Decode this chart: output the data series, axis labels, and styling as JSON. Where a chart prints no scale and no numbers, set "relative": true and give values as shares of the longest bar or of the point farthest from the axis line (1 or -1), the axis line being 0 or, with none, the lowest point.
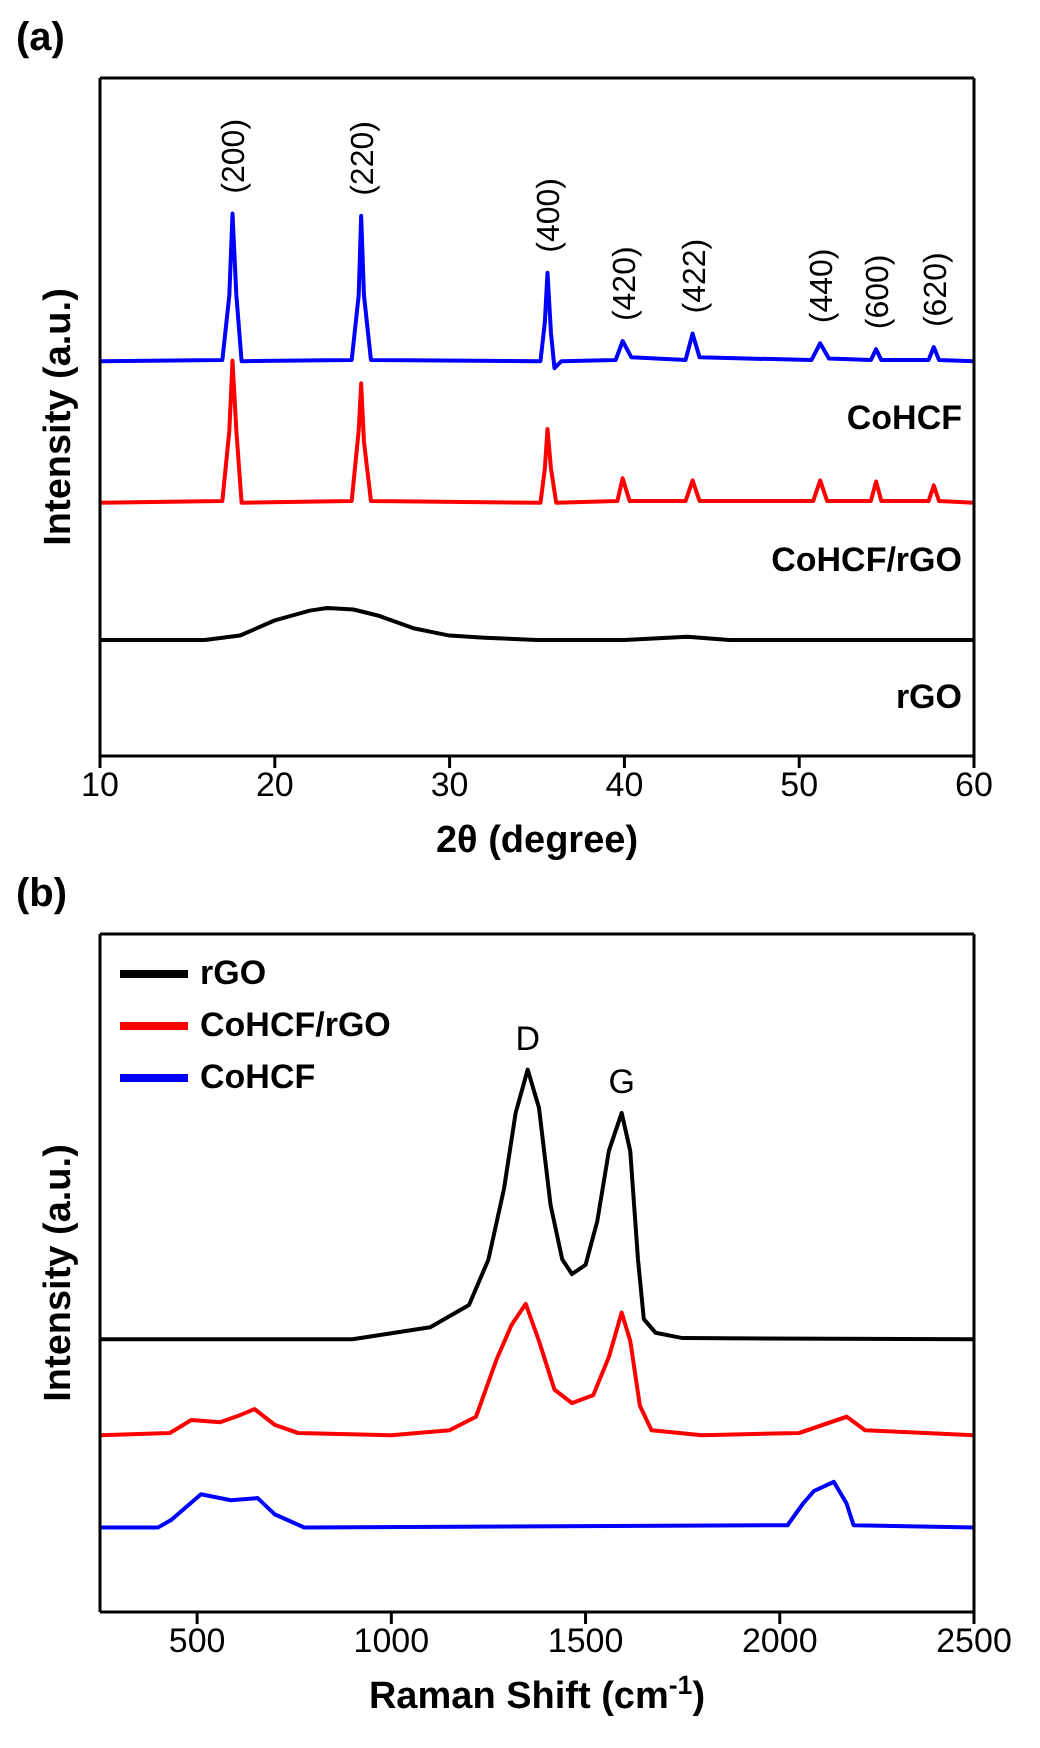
{
  "chart_data": [
    {
      "type": "line",
      "title": "(a)",
      "xlabel": "2θ (degree)",
      "ylabel": "Intensity (a.u.)",
      "relative": true,
      "xlim": [
        10,
        60
      ],
      "xticks": [
        10,
        20,
        30,
        40,
        50,
        60
      ],
      "legend": false,
      "marker": "none",
      "line_style": "solid",
      "annotations": [
        {
          "text": "(200)",
          "x": 17.58,
          "y": 1.0
        },
        {
          "text": "(220)",
          "x": 24.94,
          "y": 0.996
        },
        {
          "text": "(400)",
          "x": 35.6,
          "y": 0.891
        },
        {
          "text": "(420)",
          "x": 39.9,
          "y": 0.765
        },
        {
          "text": "(422)",
          "x": 43.9,
          "y": 0.779
        },
        {
          "text": "(440)",
          "x": 51.2,
          "y": 0.761
        },
        {
          "text": "(600)",
          "x": 54.4,
          "y": 0.75
        },
        {
          "text": "(620)",
          "x": 57.7,
          "y": 0.754
        }
      ],
      "series": [
        {
          "name": "CoHCF",
          "color": "#0000ff",
          "x": [
            10,
            17.0,
            17.4,
            17.58,
            17.8,
            18.1,
            24.4,
            24.8,
            24.94,
            25.1,
            25.5,
            35.2,
            35.45,
            35.6,
            35.8,
            36.0,
            36.4,
            39.5,
            39.9,
            40.4,
            43.5,
            43.9,
            44.3,
            50.7,
            51.2,
            51.7,
            54.1,
            54.4,
            54.7,
            57.4,
            57.7,
            58.0,
            60
          ],
          "values": [
            0.728,
            0.73,
            0.85,
            1.0,
            0.85,
            0.728,
            0.73,
            0.85,
            0.996,
            0.85,
            0.73,
            0.728,
            0.8,
            0.891,
            0.78,
            0.715,
            0.728,
            0.73,
            0.765,
            0.735,
            0.73,
            0.779,
            0.735,
            0.73,
            0.761,
            0.733,
            0.73,
            0.75,
            0.73,
            0.73,
            0.754,
            0.73,
            0.728
          ]
        },
        {
          "name": "CoHCF/rGO",
          "color": "#ff0000",
          "x": [
            10,
            17.0,
            17.4,
            17.58,
            17.8,
            18.1,
            24.4,
            24.8,
            24.94,
            25.1,
            25.5,
            35.2,
            35.45,
            35.6,
            35.8,
            36.1,
            39.6,
            39.9,
            40.3,
            43.5,
            43.9,
            44.3,
            50.8,
            51.2,
            51.6,
            54.1,
            54.4,
            54.7,
            57.4,
            57.7,
            58,
            60
          ],
          "values": [
            0.467,
            0.47,
            0.6,
            0.729,
            0.6,
            0.467,
            0.47,
            0.6,
            0.687,
            0.58,
            0.47,
            0.467,
            0.53,
            0.603,
            0.53,
            0.467,
            0.47,
            0.512,
            0.47,
            0.47,
            0.508,
            0.47,
            0.47,
            0.508,
            0.47,
            0.47,
            0.506,
            0.47,
            0.47,
            0.499,
            0.47,
            0.467
          ]
        },
        {
          "name": "rGO",
          "color": "#000000",
          "x": [
            10,
            16,
            18,
            20,
            22,
            23,
            24.5,
            26,
            28,
            30,
            32,
            35,
            40,
            43.6,
            46,
            60
          ],
          "values": [
            0.214,
            0.214,
            0.222,
            0.25,
            0.268,
            0.273,
            0.27,
            0.258,
            0.235,
            0.222,
            0.218,
            0.214,
            0.214,
            0.22,
            0.214,
            0.214
          ]
        }
      ]
    },
    {
      "type": "line",
      "title": "(b)",
      "xlabel": "Raman Shift (cm$^{-1}$)",
      "ylabel": "Intensity (a.u.)",
      "relative": true,
      "xlim": [
        250,
        2500
      ],
      "xticks": [
        500,
        1000,
        1500,
        2000,
        2500
      ],
      "legend": "top left",
      "marker": "none",
      "line_style": "solid",
      "annotations": [
        {
          "text": "D",
          "x": 1351,
          "y": 1.0
        },
        {
          "text": "G",
          "x": 1593,
          "y": 0.92
        }
      ],
      "series": [
        {
          "name": "rGO",
          "color": "#000000",
          "x": [
            250,
            900,
            1000,
            1100,
            1200,
            1250,
            1290,
            1320,
            1351,
            1380,
            1410,
            1440,
            1465,
            1500,
            1530,
            1560,
            1593,
            1615,
            1635,
            1650,
            1680,
            1750,
            2500
          ],
          "values": [
            0.503,
            0.503,
            0.514,
            0.525,
            0.566,
            0.65,
            0.78,
            0.92,
            1.0,
            0.93,
            0.75,
            0.65,
            0.623,
            0.64,
            0.72,
            0.85,
            0.92,
            0.85,
            0.65,
            0.54,
            0.515,
            0.505,
            0.503
          ]
        },
        {
          "name": "CoHCF/rGO",
          "color": "#ff0000",
          "x": [
            250,
            430,
            485,
            560,
            600,
            648,
            700,
            760,
            1000,
            1150,
            1218,
            1270,
            1310,
            1346,
            1380,
            1420,
            1465,
            1520,
            1560,
            1593,
            1615,
            1640,
            1670,
            1800,
            2050,
            2172,
            2220,
            2500
          ],
          "values": [
            0.326,
            0.33,
            0.354,
            0.35,
            0.36,
            0.374,
            0.345,
            0.33,
            0.326,
            0.335,
            0.36,
            0.464,
            0.53,
            0.568,
            0.5,
            0.41,
            0.385,
            0.4,
            0.47,
            0.552,
            0.5,
            0.38,
            0.335,
            0.326,
            0.33,
            0.36,
            0.335,
            0.326
          ]
        },
        {
          "name": "CoHCF",
          "color": "#0000ff",
          "x": [
            250,
            400,
            434,
            510,
            587,
            656,
            700,
            775,
            2020,
            2060,
            2088,
            2139,
            2172,
            2190,
            2500
          ],
          "values": [
            0.156,
            0.156,
            0.17,
            0.217,
            0.206,
            0.21,
            0.18,
            0.156,
            0.16,
            0.2,
            0.223,
            0.24,
            0.2,
            0.16,
            0.156
          ]
        }
      ]
    }
  ]
}
